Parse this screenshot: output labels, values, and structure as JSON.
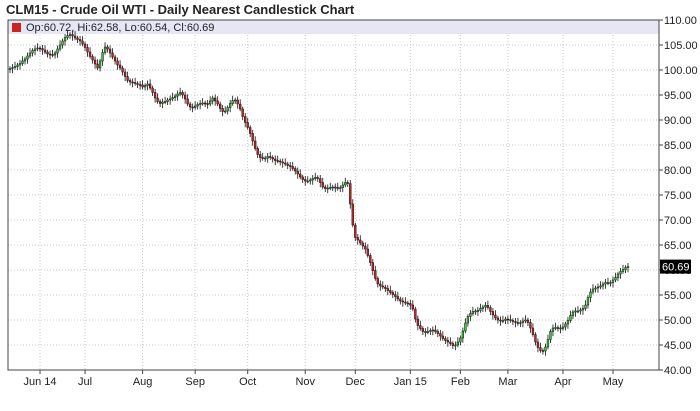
{
  "title": "CLM15 - Crude Oil WTI - Daily Nearest Candlestick Chart",
  "legend": {
    "ohlc_text": "Op:60.72, Hi:62.58, Lo:60.54, Cl:60.69",
    "swatch_color": "#cc2222"
  },
  "last_price": {
    "label": "60.69",
    "value": 60.69,
    "color": "#000000"
  },
  "colors": {
    "up": "#33cc33",
    "down": "#cc2222",
    "legend_band": "#e6e6f5",
    "grid": "#c8c8c8"
  },
  "chart_data": {
    "type": "candlestick",
    "title": "CLM15 - Crude Oil WTI - Daily Nearest Candlestick Chart",
    "xlabel": "",
    "ylabel": "",
    "ylim": [
      40,
      110
    ],
    "y_ticks": [
      "110.00",
      "105.00",
      "100.00",
      "95.00",
      "90.00",
      "85.00",
      "80.00",
      "75.00",
      "70.00",
      "65.00",
      "60.00",
      "55.00",
      "50.00",
      "45.00",
      "40.00"
    ],
    "x_ticks": [
      {
        "label": "Jun 14",
        "index": 12
      },
      {
        "label": "Jul",
        "index": 30
      },
      {
        "label": "Aug",
        "index": 53
      },
      {
        "label": "Sep",
        "index": 74
      },
      {
        "label": "Oct",
        "index": 95
      },
      {
        "label": "Nov",
        "index": 118
      },
      {
        "label": "Dec",
        "index": 138
      },
      {
        "label": "Jan 15",
        "index": 160
      },
      {
        "label": "Feb",
        "index": 180
      },
      {
        "label": "Mar",
        "index": 199
      },
      {
        "label": "Apr",
        "index": 221
      },
      {
        "label": "May",
        "index": 241
      }
    ],
    "grid": true,
    "legend_position": "top-left",
    "close": [
      100.3,
      100.5,
      100.7,
      101.0,
      101.3,
      101.8,
      102.2,
      102.8,
      103.4,
      103.9,
      104.2,
      104.4,
      104.3,
      104.0,
      103.6,
      103.2,
      103.1,
      103.0,
      103.4,
      104.2,
      105.0,
      105.8,
      106.5,
      106.9,
      107.1,
      106.8,
      106.4,
      106.1,
      105.8,
      105.2,
      104.5,
      103.6,
      102.7,
      102.0,
      101.2,
      100.4,
      101.8,
      103.5,
      104.6,
      104.2,
      103.4,
      102.6,
      101.8,
      101.0,
      100.4,
      99.6,
      98.7,
      97.9,
      97.6,
      97.5,
      97.3,
      97.1,
      97.0,
      96.6,
      96.9,
      97.2,
      96.4,
      95.5,
      94.4,
      93.7,
      93.3,
      93.6,
      93.7,
      94.0,
      94.2,
      94.5,
      94.8,
      95.2,
      95.5,
      95.0,
      94.2,
      93.2,
      92.6,
      92.5,
      92.8,
      93.1,
      93.3,
      93.4,
      93.3,
      93.2,
      93.8,
      94.4,
      93.8,
      93.2,
      92.3,
      91.7,
      91.8,
      92.5,
      93.3,
      93.9,
      94.0,
      93.2,
      92.2,
      90.7,
      89.5,
      88.5,
      87.3,
      85.8,
      84.3,
      83.1,
      82.5,
      82.3,
      82.4,
      82.7,
      82.5,
      82.2,
      81.9,
      81.8,
      81.6,
      81.4,
      81.2,
      80.9,
      80.7,
      80.3,
      79.8,
      79.2,
      78.6,
      78.1,
      77.8,
      77.8,
      78.0,
      78.3,
      78.5,
      78.3,
      77.5,
      76.6,
      76.3,
      76.4,
      76.5,
      76.6,
      76.5,
      76.3,
      76.5,
      77.0,
      77.5,
      77.3,
      73.2,
      69.0,
      66.5,
      66.0,
      65.4,
      64.8,
      64.2,
      62.9,
      61.5,
      59.9,
      58.3,
      57.2,
      56.8,
      56.6,
      56.3,
      55.9,
      55.5,
      55.1,
      54.7,
      54.2,
      53.8,
      53.6,
      53.4,
      53.3,
      53.0,
      52.2,
      50.2,
      48.9,
      48.3,
      47.7,
      47.6,
      47.7,
      47.9,
      48.0,
      47.7,
      47.3,
      46.8,
      46.3,
      45.9,
      45.6,
      45.3,
      44.9,
      45.0,
      45.6,
      46.4,
      47.8,
      49.4,
      50.7,
      51.3,
      51.7,
      51.8,
      51.9,
      52.3,
      52.6,
      52.9,
      52.5,
      51.7,
      51.0,
      50.4,
      50.0,
      49.8,
      49.9,
      50.2,
      50.1,
      49.9,
      49.7,
      49.5,
      49.3,
      49.5,
      49.8,
      50.0,
      49.5,
      48.4,
      47.1,
      45.6,
      44.5,
      43.9,
      43.8,
      44.6,
      46.1,
      47.7,
      48.4,
      48.5,
      48.4,
      48.3,
      48.6,
      49.2,
      49.9,
      50.9,
      51.6,
      51.8,
      51.8,
      52.0,
      52.3,
      53.0,
      54.5,
      55.6,
      56.2,
      56.4,
      56.6,
      56.8,
      57.2,
      57.5,
      57.4,
      57.5,
      58.0,
      58.5,
      59.2,
      59.7,
      60.1,
      60.5,
      60.69
    ]
  }
}
